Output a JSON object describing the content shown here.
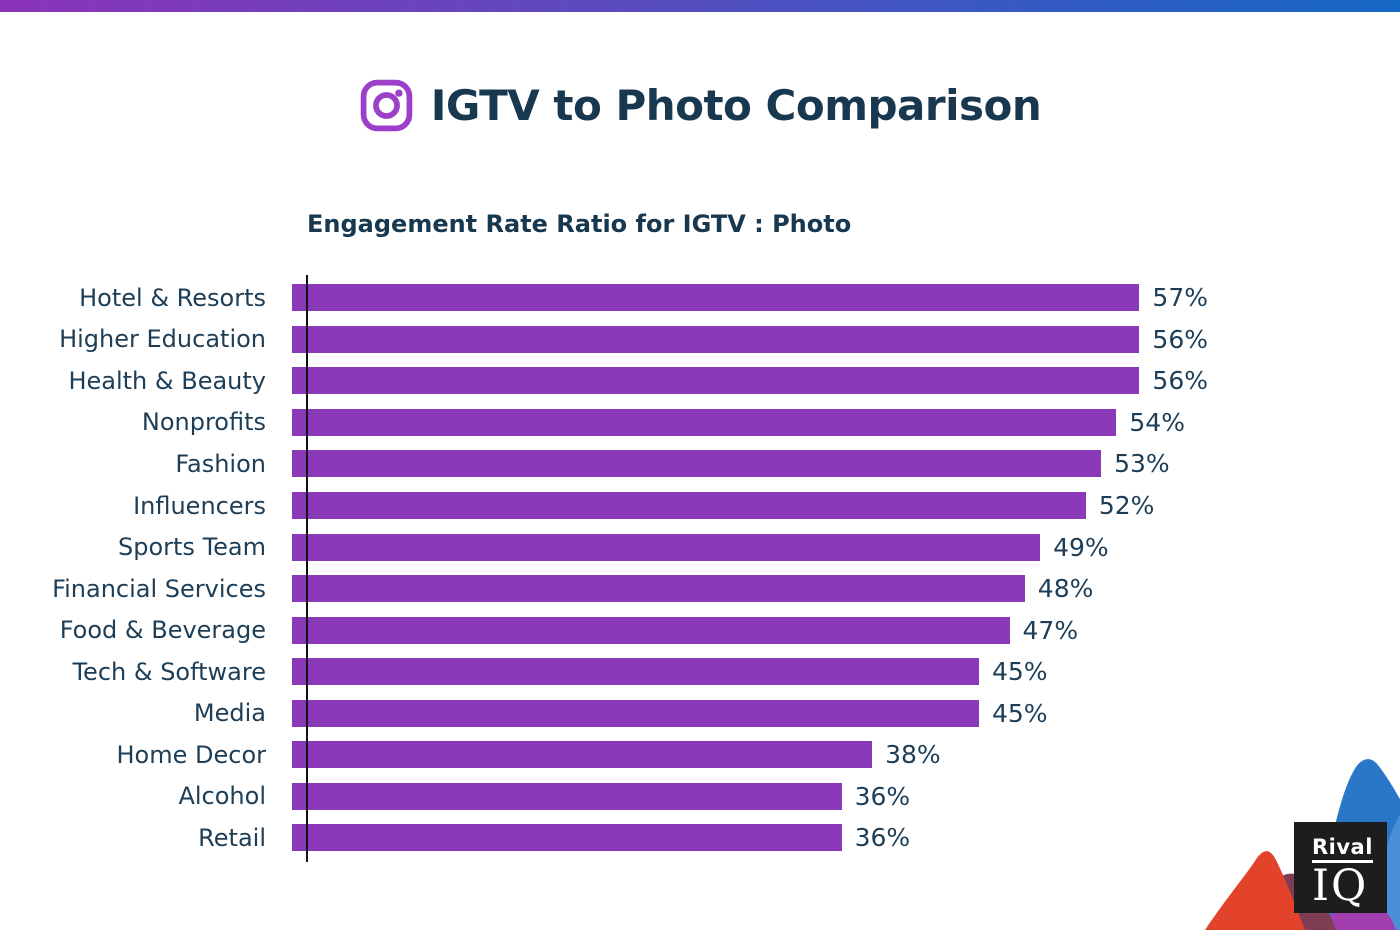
{
  "top_bar": {
    "gradient_left": "#8b34b9",
    "gradient_right": "#1567c5"
  },
  "header": {
    "title": "IGTV to Photo Comparison",
    "title_color": "#183850",
    "instagram_icon_color": "#9c3fc9"
  },
  "chart_data": {
    "type": "bar",
    "orientation": "horizontal",
    "title": "Engagement Rate Ratio for IGTV : Photo",
    "categories": [
      "Hotel & Resorts",
      "Higher Education",
      "Health & Beauty",
      "Nonprofits",
      "Fashion",
      "Influencers",
      "Sports Team",
      "Financial Services",
      "Food & Beverage",
      "Tech & Software",
      "Media",
      "Home Decor",
      "Alcohol",
      "Retail"
    ],
    "values": [
      57,
      56,
      56,
      54,
      53,
      52,
      49,
      48,
      47,
      45,
      45,
      38,
      36,
      36
    ],
    "value_labels": [
      "57%",
      "56%",
      "56%",
      "54%",
      "53%",
      "52%",
      "49%",
      "48%",
      "47%",
      "45%",
      "45%",
      "38%",
      "36%",
      "36%"
    ],
    "xlabel": "",
    "ylabel": "",
    "xlim": [
      0,
      60
    ],
    "grid": false,
    "legend": false,
    "bar_color": "#8a3ab9",
    "label_color": "#1d3e56",
    "axis_line_color": "#111111"
  },
  "logo": {
    "line1": "Rival",
    "line2": "IQ",
    "box_color": "#1d1d1d",
    "text_color": "#ffffff",
    "shapes": {
      "dark_blue_hill": "#2a77c7",
      "light_blue_hill": "#4a90d6",
      "red_hill": "#e4432b",
      "maroon_hill": "#7c3d55",
      "purple_hill": "#a13fae"
    }
  }
}
